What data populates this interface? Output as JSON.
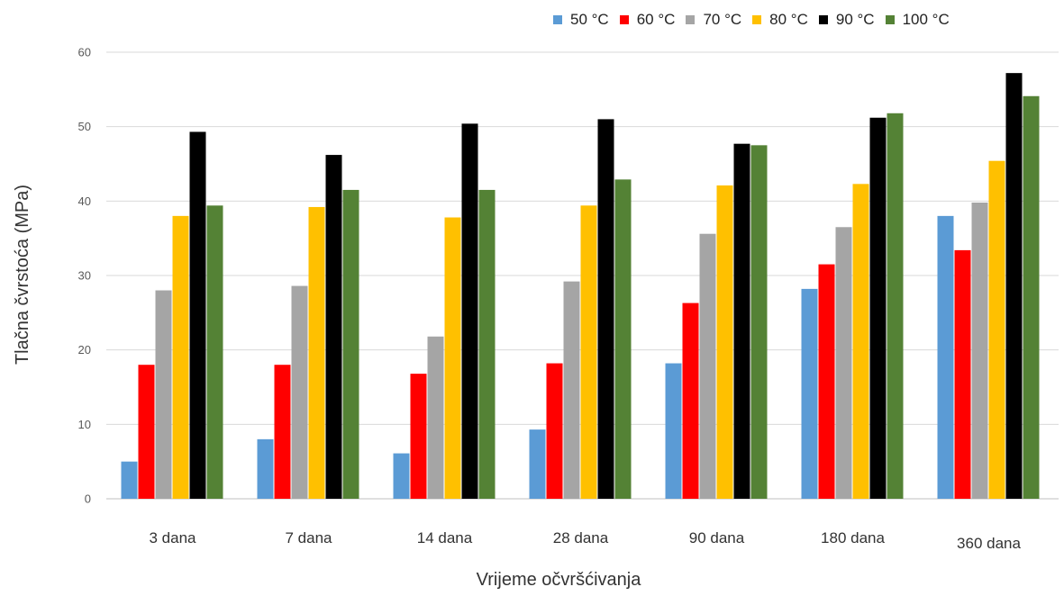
{
  "chart_data": {
    "type": "bar",
    "title": "",
    "xlabel": "Vrijeme očvršćivanja",
    "ylabel": "Tlačna čvrstoća (MPa)",
    "ylim": [
      0,
      60
    ],
    "yticks": [
      0,
      10,
      20,
      30,
      40,
      50,
      60
    ],
    "grid": true,
    "legend_position": "top-right",
    "categories": [
      "3 dana",
      "7 dana",
      "14 dana",
      "28 dana",
      "90 dana",
      "180 dana",
      "360 dana"
    ],
    "series": [
      {
        "name": "50 °C",
        "color": "#5b9bd5",
        "values": [
          5.0,
          8.0,
          6.1,
          9.3,
          18.2,
          28.2,
          38.0
        ]
      },
      {
        "name": "60 °C",
        "color": "#ff0000",
        "values": [
          18.0,
          18.0,
          16.8,
          18.2,
          26.3,
          31.5,
          33.4
        ]
      },
      {
        "name": "70 °C",
        "color": "#a5a5a5",
        "values": [
          28.0,
          28.6,
          21.8,
          29.2,
          35.6,
          36.5,
          39.8
        ]
      },
      {
        "name": "80 °C",
        "color": "#ffc000",
        "values": [
          38.0,
          39.2,
          37.8,
          39.4,
          42.1,
          42.3,
          45.4
        ]
      },
      {
        "name": "90 °C",
        "color": "#000000",
        "values": [
          49.3,
          46.2,
          50.4,
          51.0,
          47.7,
          51.2,
          57.2
        ]
      },
      {
        "name": "100 °C",
        "color": "#548235",
        "values": [
          39.4,
          41.5,
          41.5,
          42.9,
          47.5,
          51.8,
          54.1
        ]
      }
    ]
  }
}
